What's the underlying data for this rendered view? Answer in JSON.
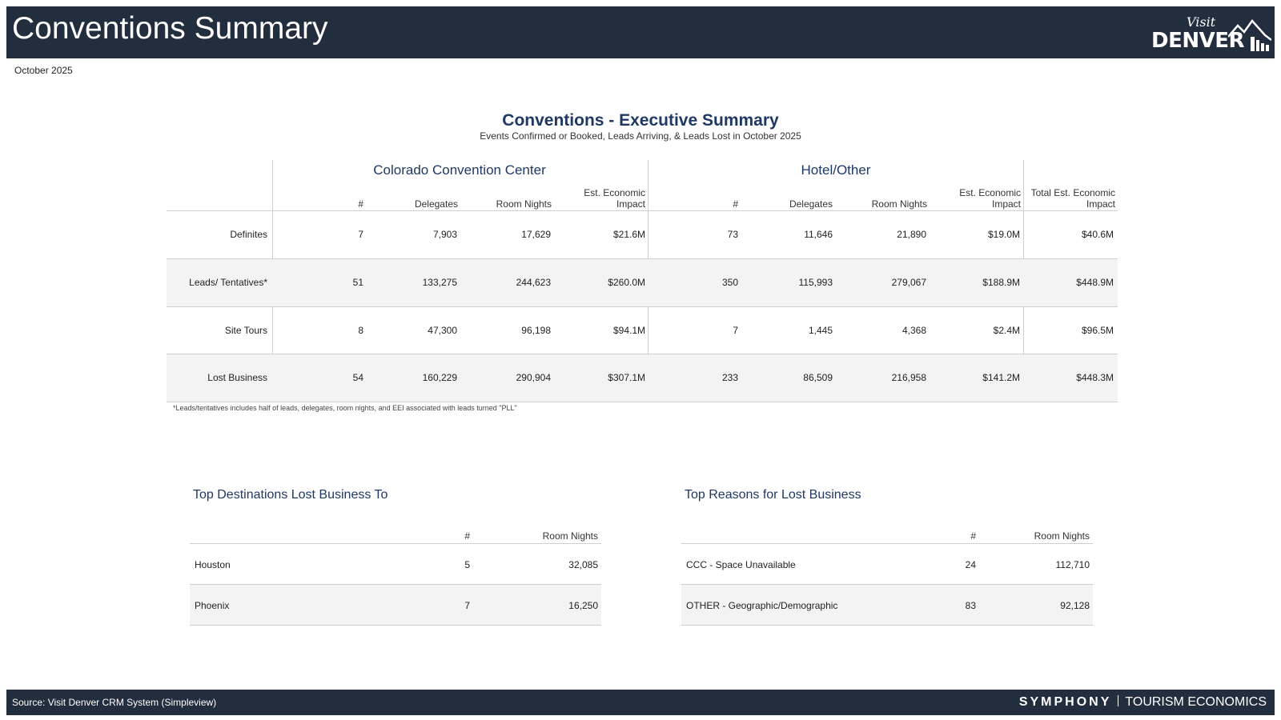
{
  "header": {
    "title": "Conventions Summary",
    "logo_visit": "Visit",
    "logo_denver": "DENVER",
    "period": "October 2025"
  },
  "exec": {
    "title": "Conventions - Executive Summary",
    "subtitle": "Events Confirmed or Booked, Leads Arriving, & Leads Lost in October 2025",
    "groups": {
      "ccc": "Colorado Convention Center",
      "hotel": "Hotel/Other"
    },
    "columns": {
      "count": "#",
      "delegates": "Delegates",
      "room_nights": "Room Nights",
      "eei_line1": "Est. Economic",
      "eei_line2": "Impact",
      "total_line1": "Total Est. Economic",
      "total_line2": "Impact"
    },
    "rows": [
      {
        "label": "Definites",
        "ccc_count": "7",
        "ccc_delegates": "7,903",
        "ccc_rn": "17,629",
        "ccc_eei": "$21.6M",
        "h_count": "73",
        "h_delegates": "11,646",
        "h_rn": "21,890",
        "h_eei": "$19.0M",
        "total": "$40.6M"
      },
      {
        "label": "Leads/ Tentatives*",
        "ccc_count": "51",
        "ccc_delegates": "133,275",
        "ccc_rn": "244,623",
        "ccc_eei": "$260.0M",
        "h_count": "350",
        "h_delegates": "115,993",
        "h_rn": "279,067",
        "h_eei": "$188.9M",
        "total": "$448.9M"
      },
      {
        "label": "Site Tours",
        "ccc_count": "8",
        "ccc_delegates": "47,300",
        "ccc_rn": "96,198",
        "ccc_eei": "$94.1M",
        "h_count": "7",
        "h_delegates": "1,445",
        "h_rn": "4,368",
        "h_eei": "$2.4M",
        "total": "$96.5M"
      },
      {
        "label": "Lost Business",
        "ccc_count": "54",
        "ccc_delegates": "160,229",
        "ccc_rn": "290,904",
        "ccc_eei": "$307.1M",
        "h_count": "233",
        "h_delegates": "86,509",
        "h_rn": "216,958",
        "h_eei": "$141.2M",
        "total": "$448.3M"
      }
    ],
    "footnote": "*Leads/tentatives includes half of leads, delegates, room nights, and EEI associated with leads turned \"PLL\""
  },
  "destinations": {
    "title": "Top Destinations Lost Business To",
    "col_count": "#",
    "col_rn": "Room Nights",
    "rows": [
      {
        "name": "Houston",
        "count": "5",
        "rn": "32,085"
      },
      {
        "name": "Phoenix",
        "count": "7",
        "rn": "16,250"
      }
    ]
  },
  "reasons": {
    "title": "Top Reasons for Lost Business",
    "col_count": "#",
    "col_rn": "Room Nights",
    "rows": [
      {
        "name": "CCC - Space Unavailable",
        "count": "24",
        "rn": "112,710"
      },
      {
        "name": "OTHER - Geographic/Demographic",
        "count": "83",
        "rn": "92,128"
      }
    ]
  },
  "footer": {
    "source": "Source: Visit Denver CRM System (Simpleview)",
    "brand_symphony": "SYMPHONY",
    "brand_te": "TOURISM ECONOMICS"
  }
}
